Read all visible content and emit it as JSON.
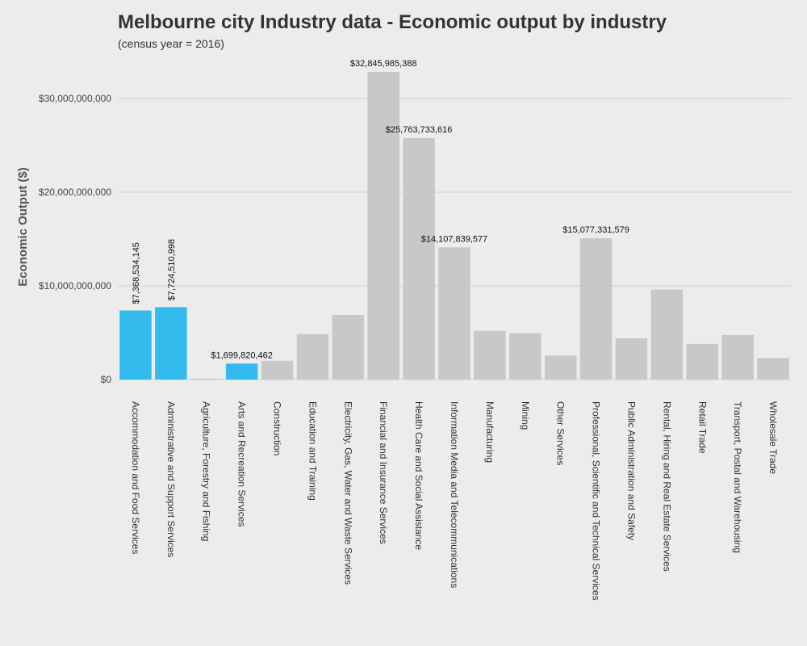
{
  "chart_data": {
    "type": "bar",
    "title": "Melbourne city Industry data - Economic output by industry",
    "subtitle": "(census year = 2016)",
    "xlabel": "",
    "ylabel": "Economic Output ($)",
    "ylim": [
      0,
      33000000000
    ],
    "yticks": [
      0,
      10000000000,
      20000000000,
      30000000000
    ],
    "ytick_labels": [
      "$0",
      "$10,000,000,000",
      "$20,000,000,000",
      "$30,000,000,000"
    ],
    "grid": "horizontal",
    "colors": {
      "highlight": "#33bbee",
      "default": "#c8c8c8"
    },
    "categories": [
      "Accommodation and Food Services",
      "Administrative and Support Services",
      "Agriculture, Forestry and Fishing",
      "Arts and Recreation Services",
      "Construction",
      "Education and Training",
      "Electricity, Gas, Water and Waste Services",
      "Financial and Insurance Services",
      "Health Care and Social Assistance",
      "Information Media and Telecommunications",
      "Manufacturing",
      "Mining",
      "Other Services",
      "Professional, Scientific and Technical Services",
      "Public Administration and Safety",
      "Rental, Hiring and Real Estate Services",
      "Retail Trade",
      "Transport, Postal and Warehousing",
      "Wholesale Trade"
    ],
    "values": [
      7368534145,
      7724510998,
      100000000,
      1699820462,
      2000000000,
      4850000000,
      6900000000,
      32845985388,
      25763733616,
      14107839577,
      5200000000,
      4950000000,
      2550000000,
      15077331579,
      4400000000,
      9600000000,
      3800000000,
      4750000000,
      2300000000
    ],
    "highlighted": [
      true,
      true,
      false,
      true,
      false,
      false,
      false,
      false,
      false,
      false,
      false,
      false,
      false,
      false,
      false,
      false,
      false,
      false,
      false
    ],
    "data_labels": [
      "$7,368,534,145",
      "$7,724,510,998",
      "",
      "$1,699,820,462",
      "",
      "",
      "",
      "$32,845,985,388",
      "$25,763,733,616",
      "$14,107,839,577",
      "",
      "",
      "",
      "$15,077,331,579",
      "",
      "",
      "",
      "",
      ""
    ],
    "data_label_rotated": [
      true,
      true,
      false,
      false,
      false,
      false,
      false,
      false,
      false,
      false,
      false,
      false,
      false,
      false,
      false,
      false,
      false,
      false,
      false
    ]
  }
}
